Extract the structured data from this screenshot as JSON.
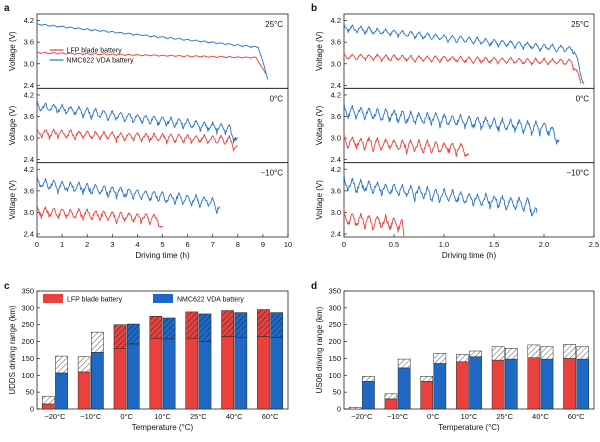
{
  "colors": {
    "lfp": "#e8413e",
    "nmc": "#1f69c4",
    "lfp_line": "#e8413e",
    "nmc_line": "#2b73c9"
  },
  "figure": {
    "legend": {
      "lfp": "LFP blade battery",
      "nmc": "NMC622 VDA battery"
    },
    "panels": {
      "a": "a",
      "b": "b",
      "c": "c",
      "d": "d"
    }
  },
  "chart_data": [
    {
      "panel": "a",
      "type": "line",
      "xlabel": "Driving time (h)",
      "ylabel": "Voltage (V)",
      "xlim": [
        0,
        10
      ],
      "ylim": [
        2.4,
        4.3
      ],
      "xticks": [
        "0",
        "1",
        "2",
        "3",
        "4",
        "5",
        "6",
        "7",
        "8",
        "9",
        "10"
      ],
      "yticks": [
        "2.4",
        "3.0",
        "3.6",
        "4.2"
      ],
      "subplots": [
        {
          "temp": "25°C",
          "series": [
            {
              "name": "LFP blade battery",
              "end": 9.1,
              "start_v": 3.32,
              "end_v": 3.18,
              "drop_v": 2.75,
              "ripple": 0.04
            },
            {
              "name": "NMC622 VDA battery",
              "end": 9.2,
              "start_v": 4.12,
              "end_v": 3.45,
              "drop_v": 2.6,
              "ripple": 0.05
            }
          ]
        },
        {
          "temp": "0°C",
          "series": [
            {
              "name": "LFP blade battery",
              "end": 8.0,
              "start_v": 3.25,
              "end_v": 3.05,
              "drop_v": 2.8,
              "ripple": 0.28
            },
            {
              "name": "NMC622 VDA battery",
              "end": 8.0,
              "start_v": 4.0,
              "end_v": 3.35,
              "drop_v": 3.0,
              "ripple": 0.3
            }
          ]
        },
        {
          "temp": "−10°C",
          "series": [
            {
              "name": "LFP blade battery",
              "end": 5.0,
              "start_v": 3.15,
              "end_v": 2.95,
              "drop_v": 2.6,
              "ripple": 0.33
            },
            {
              "name": "NMC622 VDA battery",
              "end": 7.3,
              "start_v": 3.95,
              "end_v": 3.4,
              "drop_v": 3.2,
              "ripple": 0.35
            }
          ]
        }
      ]
    },
    {
      "panel": "b",
      "type": "line",
      "xlabel": "Driving time (h)",
      "ylabel": "Voltage (V)",
      "xlim": [
        0,
        2.5
      ],
      "ylim": [
        2.4,
        4.3
      ],
      "xticks": [
        "0",
        "0.5",
        "1.0",
        "1.5",
        "2.0",
        "2.5"
      ],
      "yticks": [
        "2.4",
        "3.0",
        "3.6",
        "4.2"
      ],
      "subplots": [
        {
          "temp": "25°C",
          "series": [
            {
              "name": "LFP blade battery",
              "end": 2.37,
              "start_v": 3.28,
              "end_v": 3.12,
              "drop_v": 2.6,
              "ripple": 0.2
            },
            {
              "name": "NMC622 VDA battery",
              "end": 2.4,
              "start_v": 4.08,
              "end_v": 3.45,
              "drop_v": 2.5,
              "ripple": 0.22
            }
          ]
        },
        {
          "temp": "0°C",
          "series": [
            {
              "name": "LFP blade battery",
              "end": 1.25,
              "start_v": 3.05,
              "end_v": 2.85,
              "drop_v": 2.6,
              "ripple": 0.38
            },
            {
              "name": "NMC622 VDA battery",
              "end": 2.15,
              "start_v": 3.9,
              "end_v": 3.4,
              "drop_v": 3.1,
              "ripple": 0.4
            }
          ]
        },
        {
          "temp": "−10°C",
          "series": [
            {
              "name": "LFP blade battery",
              "end": 0.6,
              "start_v": 3.0,
              "end_v": 2.85,
              "drop_v": 2.5,
              "ripple": 0.45
            },
            {
              "name": "NMC622 VDA battery",
              "end": 1.93,
              "start_v": 3.95,
              "end_v": 3.35,
              "drop_v": 3.1,
              "ripple": 0.42
            }
          ]
        }
      ]
    },
    {
      "panel": "c",
      "type": "bar",
      "xlabel": "Temperature (°C)",
      "ylabel": "UDDS driving range (km)",
      "ylim": [
        0,
        350
      ],
      "yticks": [
        "0",
        "50",
        "100",
        "150",
        "200",
        "250",
        "300",
        "350"
      ],
      "categories": [
        "−20°C",
        "−10°C",
        "0°C",
        "10°C",
        "25°C",
        "40°C",
        "60°C"
      ],
      "series": [
        {
          "name": "LFP blade battery",
          "values": [
            15,
            110,
            180,
            210,
            210,
            215,
            215
          ],
          "hatched_to": [
            38,
            155,
            250,
            275,
            288,
            292,
            295
          ]
        },
        {
          "name": "NMC622 VDA battery",
          "values": [
            107,
            168,
            193,
            208,
            200,
            213,
            212
          ],
          "hatched_to": [
            157,
            228,
            252,
            270,
            282,
            286,
            286
          ]
        }
      ]
    },
    {
      "panel": "d",
      "type": "bar",
      "xlabel": "Temperature (°C)",
      "ylabel": "US06 driving range (km)",
      "ylim": [
        0,
        350
      ],
      "yticks": [
        "0",
        "50",
        "100",
        "150",
        "200",
        "250",
        "300",
        "350"
      ],
      "categories": [
        "−20°C",
        "−10°C",
        "0°C",
        "10°C",
        "25°C",
        "40°C",
        "60°C"
      ],
      "series": [
        {
          "name": "LFP blade battery",
          "values": [
            0,
            30,
            82,
            140,
            145,
            152,
            150
          ],
          "hatched_to": [
            5,
            45,
            97,
            162,
            185,
            190,
            192
          ]
        },
        {
          "name": "NMC622 VDA battery",
          "values": [
            82,
            122,
            135,
            155,
            148,
            148,
            148
          ],
          "hatched_to": [
            97,
            148,
            165,
            172,
            180,
            185,
            185
          ]
        }
      ]
    }
  ]
}
